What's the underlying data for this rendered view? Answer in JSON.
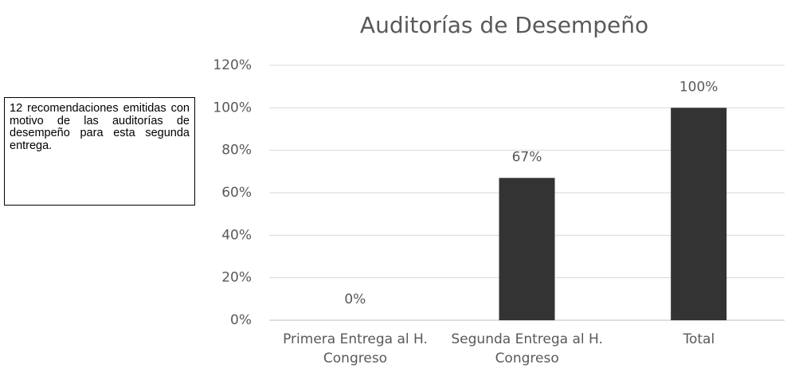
{
  "chart_data": {
    "type": "bar",
    "title": "Auditorías de Desempeño",
    "annotation": "12 recomendaciones emitidas con motivo de las auditorías de desempeño para esta segunda entrega.",
    "categories": [
      "Primera Entrega al H. Congreso",
      "Segunda Entrega al H. Congreso",
      "Total"
    ],
    "values": [
      0,
      67,
      100
    ],
    "value_labels": [
      "0%",
      "67%",
      "100%"
    ],
    "color": "#333333",
    "ylim": [
      0,
      120
    ],
    "yticks": [
      {
        "value": 0,
        "label": "0%"
      },
      {
        "value": 20,
        "label": "20%"
      },
      {
        "value": 40,
        "label": "40%"
      },
      {
        "value": 60,
        "label": "60%"
      },
      {
        "value": 80,
        "label": "80%"
      },
      {
        "value": 100,
        "label": "100%"
      },
      {
        "value": 120,
        "label": "120%"
      }
    ],
    "grid": true
  }
}
